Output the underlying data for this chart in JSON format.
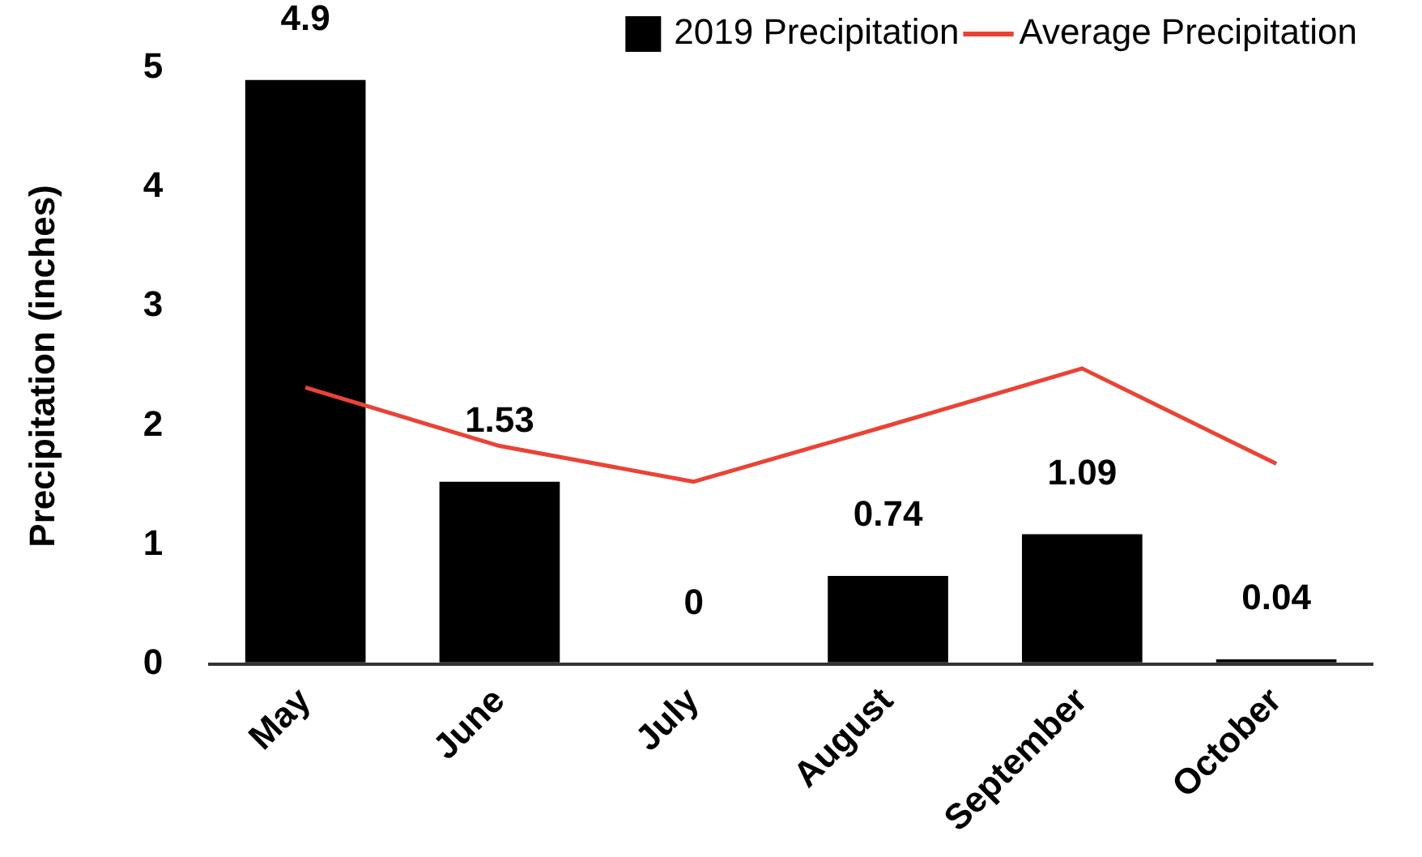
{
  "chart_data": {
    "type": "bar",
    "ylabel": "Precipitation (inches)",
    "categories": [
      "May",
      "June",
      "July",
      "August",
      "September",
      "October"
    ],
    "series": [
      {
        "name": "2019 Precipitation",
        "color": "#000000",
        "values": [
          4.9,
          1.53,
          0,
          0.74,
          1.09,
          0.04
        ],
        "value_labels": [
          "4.9",
          "1.53",
          "0",
          "0.74",
          "1.09",
          "0.04"
        ]
      },
      {
        "name": "Average Precipitation",
        "type": "line",
        "color": "#ea4335",
        "values": [
          2.32,
          1.83,
          1.53,
          2.0,
          2.48,
          1.68
        ]
      }
    ],
    "ylim": [
      0,
      5
    ],
    "yticks": [
      0,
      1,
      2,
      3,
      4,
      5
    ],
    "grid": false,
    "legend": "top right",
    "marker": "none"
  }
}
